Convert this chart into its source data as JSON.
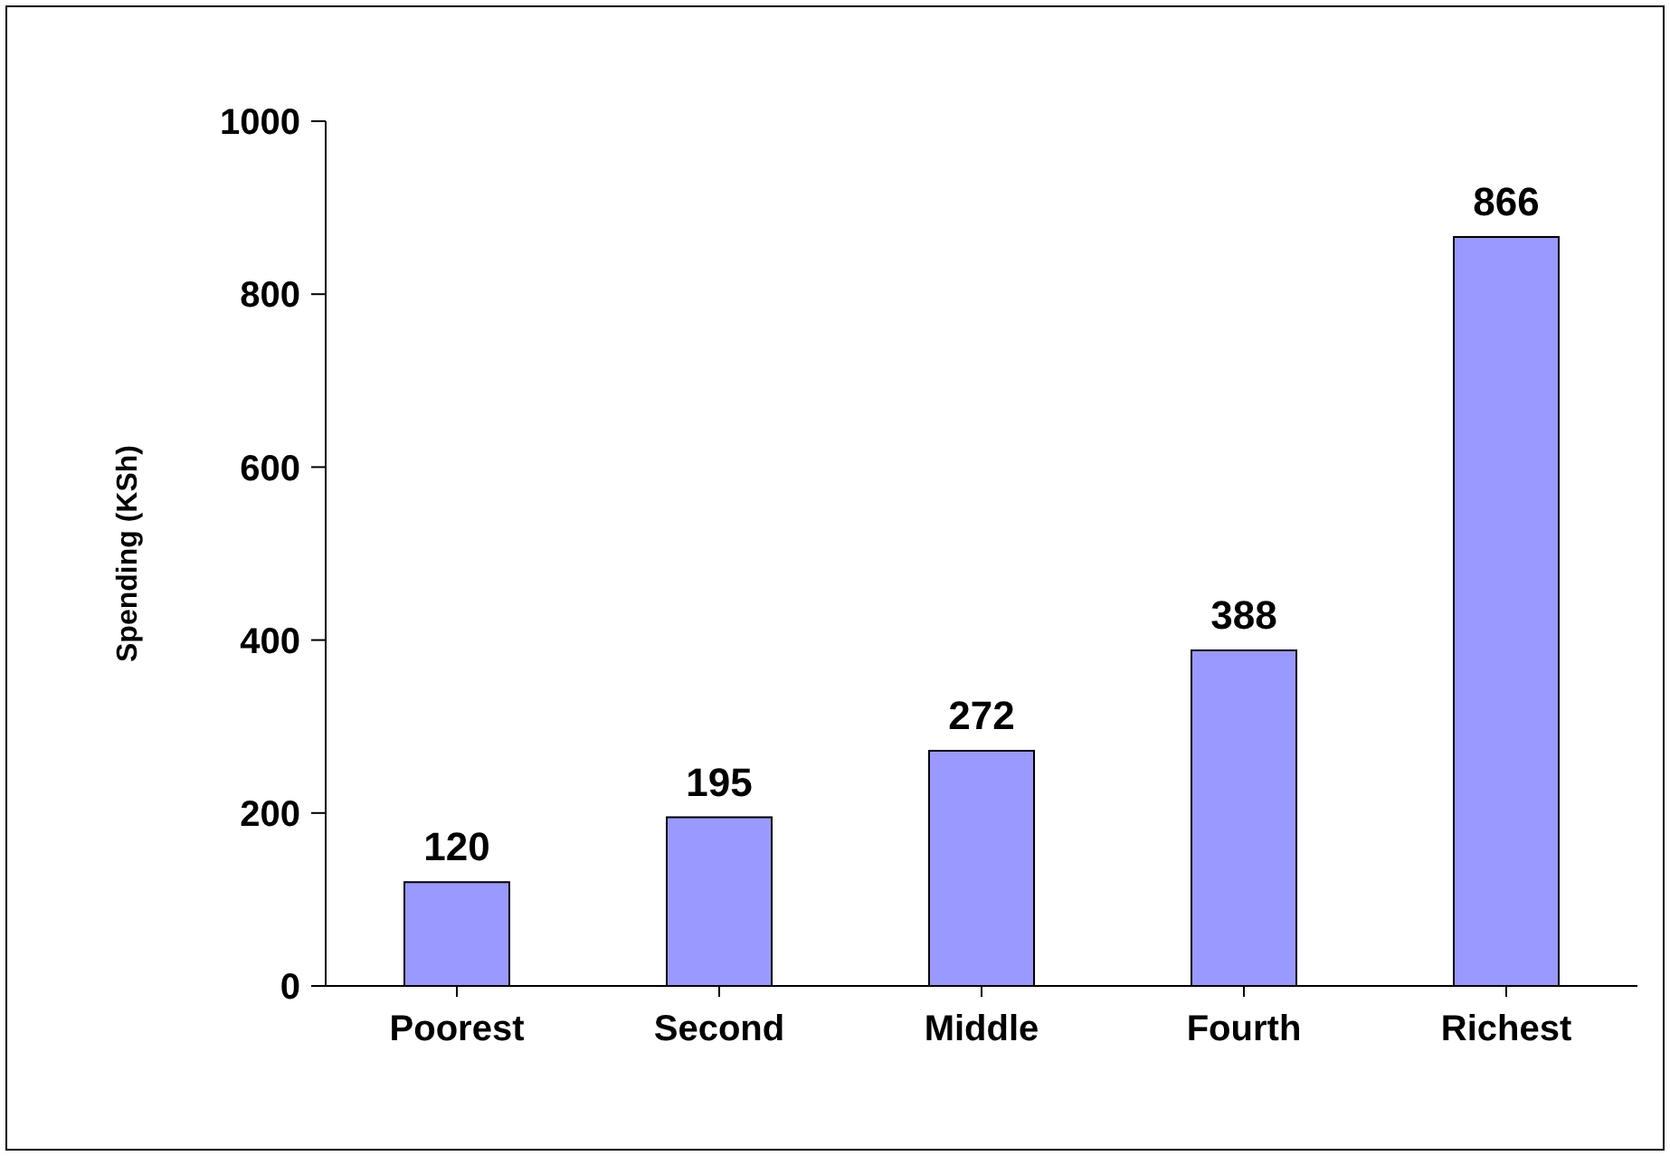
{
  "chart_data": {
    "type": "bar",
    "ylabel": "Spending (KSh)",
    "categories": [
      "Poorest",
      "Second",
      "Middle",
      "Fourth",
      "Richest"
    ],
    "values": [
      120,
      195,
      272,
      388,
      866
    ],
    "color": "#9999ff",
    "ylim": [
      0,
      1000
    ],
    "yticks": [
      0,
      200,
      400,
      600,
      800,
      1000
    ],
    "grid": false,
    "data_labels": true
  }
}
